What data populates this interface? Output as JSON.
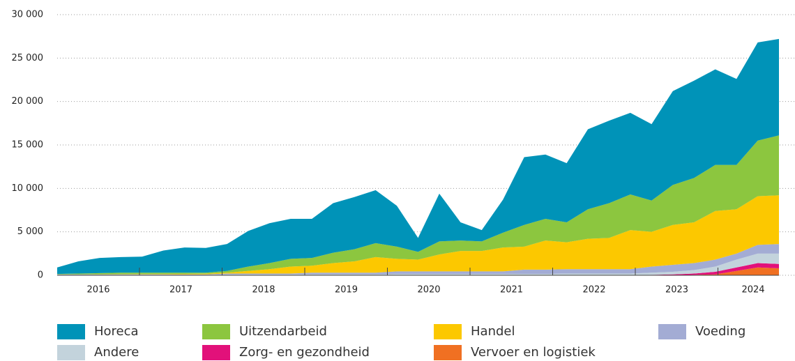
{
  "chart_data": {
    "type": "stacked_area",
    "year_labels": [
      "2016",
      "2017",
      "2018",
      "2019",
      "2020",
      "2021",
      "2022",
      "2023",
      "2024"
    ],
    "series": [
      {
        "name": "Horeca",
        "color": "#0093b8",
        "values": [
          750,
          1400,
          1750,
          1800,
          1850,
          2550,
          2900,
          2850,
          3100,
          4100,
          4600,
          4600,
          4500,
          5700,
          6000,
          6100,
          4700,
          1600,
          5500,
          2100,
          1300,
          3800,
          7800,
          7400,
          6800,
          9200,
          9500,
          9400,
          8800,
          10800,
          11200,
          11000,
          9900,
          11300,
          11100
        ]
      },
      {
        "name": "Uitzendarbeid",
        "color": "#8cc63f",
        "values": [
          50,
          100,
          130,
          170,
          160,
          150,
          140,
          120,
          200,
          500,
          700,
          900,
          900,
          1200,
          1400,
          1600,
          1400,
          900,
          1500,
          1200,
          1100,
          1700,
          2500,
          2500,
          2300,
          3400,
          4000,
          4100,
          3600,
          4600,
          5100,
          5300,
          5100,
          6400,
          6900
        ]
      },
      {
        "name": "Handel",
        "color": "#fcc800",
        "values": [
          0,
          0,
          20,
          30,
          40,
          50,
          60,
          80,
          100,
          300,
          500,
          800,
          800,
          1100,
          1300,
          1800,
          1450,
          1350,
          1950,
          2350,
          2350,
          2750,
          2650,
          3350,
          3100,
          3500,
          3600,
          4500,
          4000,
          4600,
          4700,
          5600,
          5100,
          5600,
          5600
        ]
      },
      {
        "name": "Voeding",
        "color": "#a3acd4",
        "values": [
          50,
          50,
          50,
          50,
          50,
          50,
          50,
          50,
          100,
          100,
          100,
          100,
          200,
          200,
          200,
          200,
          300,
          300,
          300,
          300,
          300,
          300,
          500,
          500,
          500,
          500,
          500,
          500,
          700,
          800,
          800,
          800,
          700,
          1000,
          1100
        ]
      },
      {
        "name": "Andere",
        "color": "#c3d3dc",
        "values": [
          50,
          50,
          50,
          50,
          50,
          50,
          50,
          50,
          100,
          100,
          100,
          100,
          100,
          100,
          100,
          100,
          150,
          150,
          150,
          150,
          150,
          150,
          150,
          150,
          200,
          200,
          200,
          200,
          250,
          300,
          400,
          600,
          900,
          1100,
          1200
        ]
      },
      {
        "name": "Zorg- en gezondheid",
        "color": "#e2117a",
        "values": [
          0,
          0,
          0,
          0,
          0,
          0,
          0,
          0,
          0,
          0,
          0,
          0,
          0,
          0,
          0,
          0,
          0,
          0,
          0,
          0,
          0,
          0,
          0,
          0,
          0,
          0,
          0,
          0,
          50,
          100,
          150,
          300,
          400,
          500,
          500
        ]
      },
      {
        "name": "Vervoer en logistiek",
        "color": "#f07022",
        "values": [
          0,
          0,
          0,
          0,
          0,
          0,
          0,
          0,
          0,
          0,
          0,
          0,
          0,
          0,
          0,
          0,
          0,
          0,
          0,
          0,
          0,
          0,
          0,
          0,
          0,
          0,
          0,
          0,
          0,
          0,
          50,
          100,
          500,
          900,
          800
        ]
      }
    ],
    "ylim": [
      0,
      30000
    ],
    "yticks": [
      0,
      {
        "value": 5000,
        "label": "5 000"
      },
      {
        "value": 10000,
        "label": "10 000"
      },
      {
        "value": 15000,
        "label": "15 000"
      },
      {
        "value": 20000,
        "label": "20 000"
      },
      {
        "value": 25000,
        "label": "25 000"
      },
      {
        "value": 30000,
        "label": "30 000"
      }
    ],
    "grid": true
  }
}
